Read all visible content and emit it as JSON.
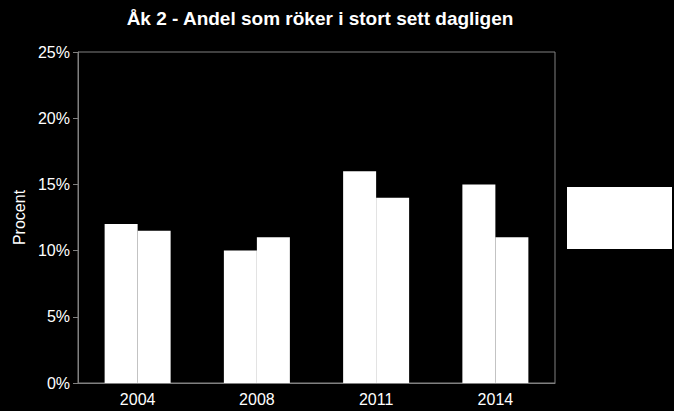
{
  "chart_data": {
    "type": "bar",
    "title": "Åk 2 - Andel som röker i stort sett dagligen",
    "y_label": "Procent",
    "categories": [
      "2004",
      "2008",
      "2011",
      "2014"
    ],
    "series": [
      {
        "color": "#ffffff",
        "values": [
          12,
          10,
          16,
          15
        ]
      },
      {
        "color": "#ffffff",
        "values": [
          11.5,
          11,
          14,
          11
        ]
      }
    ],
    "ylim": [
      0,
      25
    ],
    "yticks": [
      {
        "value": 0,
        "label": "0%"
      },
      {
        "value": 5,
        "label": "5%"
      },
      {
        "value": 10,
        "label": "10%"
      },
      {
        "value": 15,
        "label": "15%"
      },
      {
        "value": 20,
        "label": "20%"
      },
      {
        "value": 25,
        "label": "25%"
      }
    ],
    "grid": false
  }
}
